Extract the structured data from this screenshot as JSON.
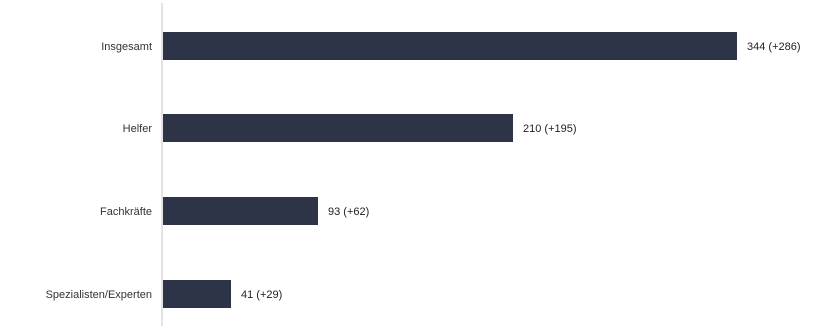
{
  "chart_data": {
    "type": "bar",
    "orientation": "horizontal",
    "categories": [
      "Insgesamt",
      "Helfer",
      "Fachkräfte",
      "Spezialisten/Experten"
    ],
    "values": [
      344,
      210,
      93,
      41
    ],
    "changes": [
      "+286",
      "+195",
      "+62",
      "+29"
    ],
    "value_labels": [
      "344 (+286)",
      "210 (+195)",
      "93 (+62)",
      "41 (+29)"
    ],
    "title": "",
    "xlabel": "",
    "ylabel": "",
    "xlim": [
      0,
      344
    ],
    "grid": false,
    "legend": "none",
    "bar_color": "#2e3448",
    "axis_color": "#c8c8c8"
  }
}
